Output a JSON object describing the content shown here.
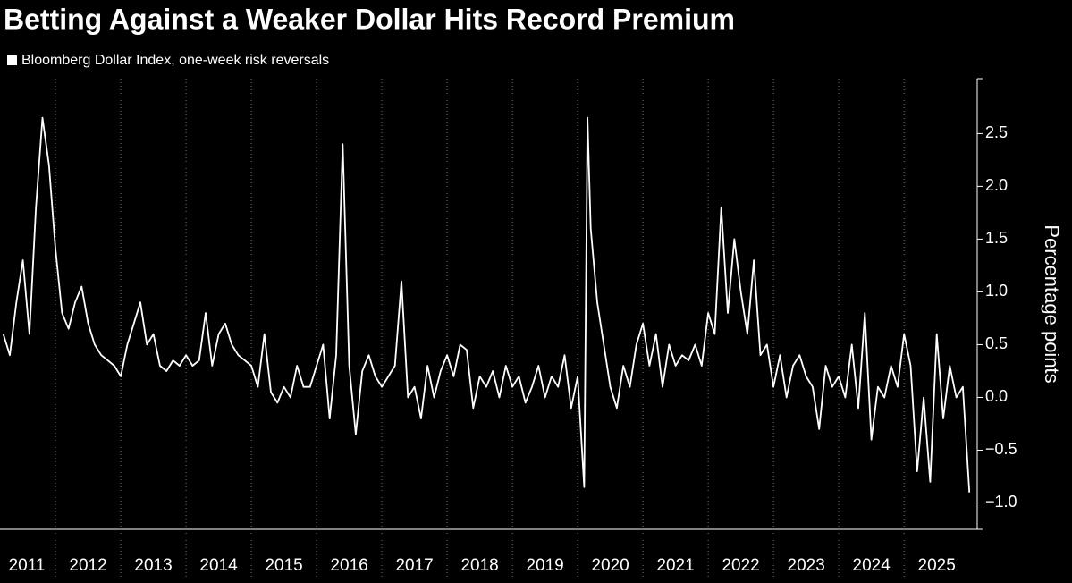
{
  "chart_data": {
    "type": "line",
    "title": "Betting Against a Weaker Dollar Hits Record Premium",
    "y_label": "Percentage points",
    "series": [
      {
        "name": "Bloomberg Dollar Index, one-week risk reversals",
        "color": "#ffffff",
        "x": [
          2011.2,
          2011.3,
          2011.4,
          2011.5,
          2011.6,
          2011.7,
          2011.8,
          2011.9,
          2012.0,
          2012.1,
          2012.2,
          2012.3,
          2012.4,
          2012.5,
          2012.6,
          2012.7,
          2012.8,
          2012.9,
          2013.0,
          2013.1,
          2013.2,
          2013.3,
          2013.4,
          2013.5,
          2013.6,
          2013.7,
          2013.8,
          2013.9,
          2014.0,
          2014.1,
          2014.2,
          2014.3,
          2014.4,
          2014.5,
          2014.6,
          2014.7,
          2014.8,
          2014.9,
          2015.0,
          2015.1,
          2015.2,
          2015.3,
          2015.4,
          2015.5,
          2015.6,
          2015.7,
          2015.8,
          2015.9,
          2016.0,
          2016.1,
          2016.2,
          2016.3,
          2016.4,
          2016.5,
          2016.6,
          2016.7,
          2016.8,
          2016.9,
          2017.0,
          2017.1,
          2017.2,
          2017.3,
          2017.4,
          2017.5,
          2017.6,
          2017.7,
          2017.8,
          2017.9,
          2018.0,
          2018.1,
          2018.2,
          2018.3,
          2018.4,
          2018.5,
          2018.6,
          2018.7,
          2018.8,
          2018.9,
          2019.0,
          2019.1,
          2019.2,
          2019.3,
          2019.4,
          2019.5,
          2019.6,
          2019.7,
          2019.8,
          2019.9,
          2020.0,
          2020.1,
          2020.15,
          2020.2,
          2020.3,
          2020.4,
          2020.5,
          2020.6,
          2020.7,
          2020.8,
          2020.9,
          2021.0,
          2021.1,
          2021.2,
          2021.3,
          2021.4,
          2021.5,
          2021.6,
          2021.7,
          2021.8,
          2021.9,
          2022.0,
          2022.1,
          2022.2,
          2022.3,
          2022.4,
          2022.5,
          2022.6,
          2022.7,
          2022.8,
          2022.9,
          2023.0,
          2023.1,
          2023.2,
          2023.3,
          2023.4,
          2023.5,
          2023.6,
          2023.7,
          2023.8,
          2023.9,
          2024.0,
          2024.1,
          2024.2,
          2024.3,
          2024.4,
          2024.5,
          2024.6,
          2024.7,
          2024.8,
          2024.9,
          2025.0,
          2025.1,
          2025.2,
          2025.3,
          2025.4,
          2025.5,
          2025.6,
          2025.7,
          2025.8,
          2025.9,
          2026.0
        ],
        "values": [
          0.6,
          0.4,
          0.9,
          1.3,
          0.6,
          1.8,
          2.65,
          2.2,
          1.4,
          0.8,
          0.65,
          0.9,
          1.05,
          0.7,
          0.5,
          0.4,
          0.35,
          0.3,
          0.2,
          0.5,
          0.7,
          0.9,
          0.5,
          0.6,
          0.3,
          0.25,
          0.35,
          0.3,
          0.4,
          0.3,
          0.35,
          0.8,
          0.3,
          0.6,
          0.7,
          0.5,
          0.4,
          0.35,
          0.3,
          0.1,
          0.6,
          0.05,
          -0.05,
          0.1,
          0.0,
          0.3,
          0.1,
          0.1,
          0.3,
          0.5,
          -0.2,
          0.4,
          2.4,
          0.3,
          -0.35,
          0.25,
          0.4,
          0.2,
          0.1,
          0.2,
          0.3,
          1.1,
          0.0,
          0.1,
          -0.2,
          0.3,
          0.0,
          0.25,
          0.4,
          0.2,
          0.5,
          0.45,
          -0.1,
          0.2,
          0.1,
          0.25,
          0.0,
          0.3,
          0.1,
          0.2,
          -0.05,
          0.1,
          0.3,
          0.0,
          0.2,
          0.1,
          0.4,
          -0.1,
          0.2,
          -0.85,
          2.65,
          1.6,
          0.9,
          0.5,
          0.1,
          -0.1,
          0.3,
          0.1,
          0.5,
          0.7,
          0.3,
          0.6,
          0.1,
          0.5,
          0.3,
          0.4,
          0.35,
          0.5,
          0.3,
          0.8,
          0.6,
          1.8,
          0.8,
          1.5,
          1.0,
          0.6,
          1.3,
          0.4,
          0.5,
          0.1,
          0.4,
          0.0,
          0.3,
          0.4,
          0.2,
          0.1,
          -0.3,
          0.3,
          0.1,
          0.2,
          0.0,
          0.5,
          -0.1,
          0.8,
          -0.4,
          0.1,
          0.0,
          0.3,
          0.1,
          0.6,
          0.3,
          -0.7,
          0.0,
          -0.8,
          0.6,
          -0.2,
          0.3,
          0.0,
          0.1,
          -0.9
        ]
      }
    ],
    "xlim": [
      2011.15,
      2026.08
    ],
    "xticks": [
      2011,
      2012,
      2013,
      2014,
      2015,
      2016,
      2017,
      2018,
      2019,
      2020,
      2021,
      2022,
      2023,
      2024,
      2025
    ],
    "ylim": [
      -1.25,
      3.02
    ],
    "yticks": [
      {
        "value": -1.0,
        "label": "−1.0"
      },
      {
        "value": -0.5,
        "label": "−0.5"
      },
      {
        "value": 0,
        "label": "0.0"
      },
      {
        "value": 0.5,
        "label": "0.5"
      },
      {
        "value": 1.0,
        "label": "1.0"
      },
      {
        "value": 1.5,
        "label": "1.5"
      },
      {
        "value": 2.0,
        "label": "2.0"
      },
      {
        "value": 2.5,
        "label": "2.5"
      }
    ],
    "grid": true
  }
}
